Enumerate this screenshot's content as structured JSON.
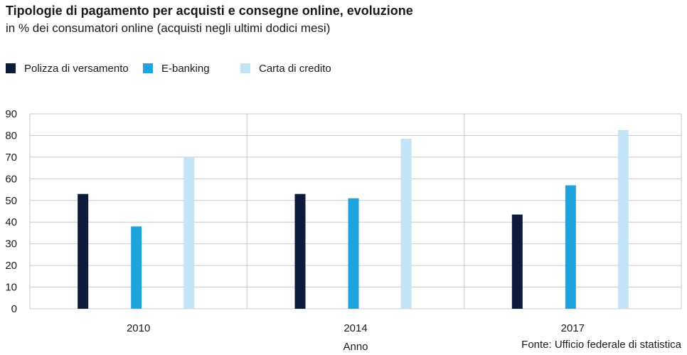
{
  "title": "Tipologie di pagamento per acquisti e consegne online, evoluzione",
  "subtitle": "in % dei consumatori online (acquisti negli ultimi dodici mesi)",
  "source": "Fonte: Ufficio federale di statistica",
  "chart_data": {
    "type": "bar",
    "title": "Tipologie di pagamento per acquisti e consegne online, evoluzione",
    "subtitle": "in % dei consumatori online (acquisti negli ultimi dodici mesi)",
    "xlabel": "Anno",
    "ylabel": "",
    "categories": [
      "2010",
      "2014",
      "2017"
    ],
    "ylim": [
      0,
      90
    ],
    "yticks": [
      0,
      10,
      20,
      30,
      40,
      50,
      60,
      70,
      80,
      90
    ],
    "grid": true,
    "legend_position": "top-left",
    "series": [
      {
        "name": "Polizza di versamento",
        "color": "#0d1a3c",
        "values": [
          53,
          53,
          43.5
        ]
      },
      {
        "name": "E-banking",
        "color": "#1fa3dc",
        "values": [
          38,
          51,
          57
        ]
      },
      {
        "name": "Carta di credito",
        "color": "#c3e3f7",
        "values": [
          70,
          78.5,
          82.5
        ]
      }
    ]
  }
}
